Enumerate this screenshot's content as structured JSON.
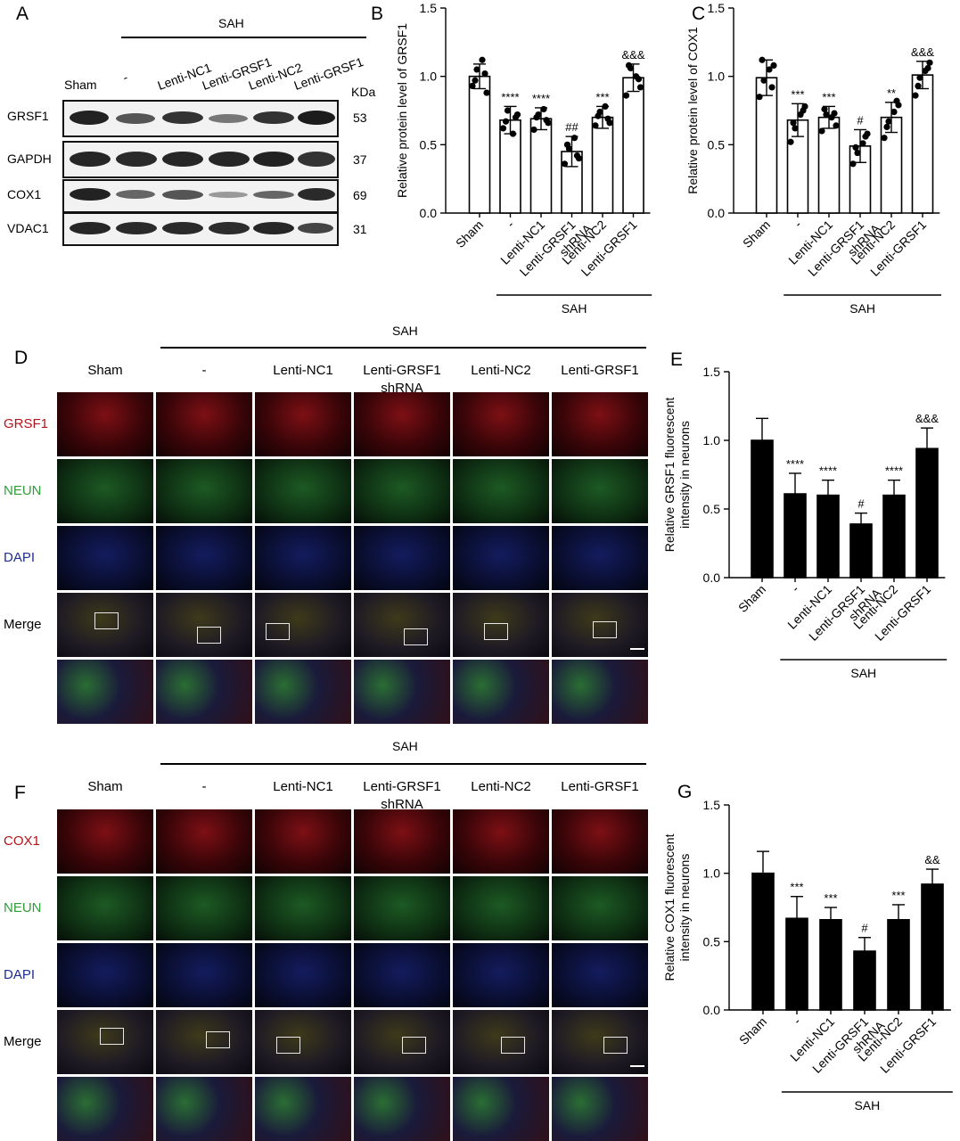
{
  "panels": [
    "A",
    "B",
    "C",
    "D",
    "E",
    "F",
    "G"
  ],
  "western": {
    "sah_label": "SAH",
    "lanes": [
      "Sham",
      "-",
      "Lenti-NC1",
      "Lenti-GRSF1",
      "Lenti-NC2",
      "Lenti-GRSF1"
    ],
    "kda_label": "KDa",
    "rows": [
      {
        "protein": "GRSF1",
        "kda": "53"
      },
      {
        "protein": "GAPDH",
        "kda": "37"
      },
      {
        "protein": "COX1",
        "kda": "69"
      },
      {
        "protein": "VDAC1",
        "kda": "31"
      }
    ]
  },
  "groups": [
    "Sham",
    "-",
    "Lenti-NC1",
    "Lenti-GRSF1\nshRNA",
    "Lenti-NC2",
    "Lenti-GRSF1"
  ],
  "sah_label": "SAH",
  "micrographs": {
    "d_headers": [
      "Sham",
      "-",
      "Lenti-NC1",
      "Lenti-GRSF1",
      "Lenti-NC2",
      "Lenti-GRSF1"
    ],
    "d_header_sub": "shRNA",
    "d_rows": [
      "GRSF1",
      "NEUN",
      "DAPI",
      "Merge"
    ],
    "f_rows": [
      "COX1",
      "NEUN",
      "DAPI",
      "Merge"
    ],
    "colors": {
      "red": "#b2141b",
      "green": "#2e9e3a",
      "blue": "#1f2d8f",
      "black": "#000000"
    }
  },
  "chart_data": [
    {
      "panel": "B",
      "type": "bar",
      "categories": [
        "Sham",
        "-",
        "Lenti-NC1",
        "Lenti-GRSF1 shRNA",
        "Lenti-NC2",
        "Lenti-GRSF1"
      ],
      "values": [
        1.0,
        0.68,
        0.69,
        0.45,
        0.7,
        0.99
      ],
      "errors": [
        0.09,
        0.1,
        0.08,
        0.11,
        0.08,
        0.1
      ],
      "points": [
        [
          0.93,
          1.05,
          1.12,
          0.88,
          0.97,
          1.02
        ],
        [
          0.62,
          0.75,
          0.58,
          0.72,
          0.67,
          0.7
        ],
        [
          0.61,
          0.72,
          0.76,
          0.66,
          0.7,
          0.68
        ],
        [
          0.36,
          0.47,
          0.55,
          0.4,
          0.5,
          0.42
        ],
        [
          0.64,
          0.74,
          0.78,
          0.66,
          0.71,
          0.69
        ],
        [
          0.86,
          1.06,
          1.0,
          0.92,
          1.08,
          0.98
        ]
      ],
      "annotations": [
        "",
        "****",
        "****",
        "##",
        "***",
        "&&&"
      ],
      "ylabel": "Relative protein level of GRSF1",
      "ylim": [
        0,
        1.5
      ],
      "yticks": [
        "0.0",
        "0.5",
        "1.0",
        "1.5"
      ],
      "style": "hollow"
    },
    {
      "panel": "C",
      "type": "bar",
      "categories": [
        "Sham",
        "-",
        "Lenti-NC1",
        "Lenti-GRSF1 shRNA",
        "Lenti-NC2",
        "Lenti-GRSF1"
      ],
      "values": [
        0.99,
        0.68,
        0.7,
        0.49,
        0.7,
        1.01
      ],
      "errors": [
        0.13,
        0.12,
        0.08,
        0.12,
        0.11,
        0.1
      ],
      "points": [
        [
          0.85,
          0.97,
          1.05,
          1.08,
          1.12,
          0.92
        ],
        [
          0.52,
          0.62,
          0.72,
          0.78,
          0.66,
          0.75
        ],
        [
          0.6,
          0.72,
          0.7,
          0.64,
          0.76,
          0.73
        ],
        [
          0.36,
          0.44,
          0.51,
          0.58,
          0.48,
          0.56
        ],
        [
          0.55,
          0.67,
          0.74,
          0.79,
          0.63,
          0.82
        ],
        [
          0.86,
          0.99,
          1.04,
          1.1,
          0.93,
          1.06
        ]
      ],
      "annotations": [
        "",
        "***",
        "***",
        "#",
        "**",
        "&&&"
      ],
      "ylabel": "Relative protein level of COX1",
      "ylim": [
        0,
        1.5
      ],
      "yticks": [
        "0.0",
        "0.5",
        "1.0",
        "1.5"
      ],
      "style": "hollow"
    },
    {
      "panel": "E",
      "type": "bar",
      "categories": [
        "Sham",
        "-",
        "Lenti-NC1",
        "Lenti-GRSF1 shRNA",
        "Lenti-NC2",
        "Lenti-GRSF1"
      ],
      "values": [
        1.0,
        0.61,
        0.6,
        0.39,
        0.6,
        0.94
      ],
      "errors": [
        0.16,
        0.15,
        0.11,
        0.08,
        0.11,
        0.15
      ],
      "annotations": [
        "",
        "****",
        "****",
        "#",
        "****",
        "&&&"
      ],
      "ylabel": "Relative GRSF1 fluorescent\nintensity in neurons",
      "ylim": [
        0,
        1.5
      ],
      "yticks": [
        "0.0",
        "0.5",
        "1.0",
        "1.5"
      ],
      "style": "filled"
    },
    {
      "panel": "G",
      "type": "bar",
      "categories": [
        "Sham",
        "-",
        "Lenti-NC1",
        "Lenti-GRSF1 shRNA",
        "Lenti-NC2",
        "Lenti-GRSF1"
      ],
      "values": [
        1.0,
        0.67,
        0.66,
        0.43,
        0.66,
        0.92
      ],
      "errors": [
        0.16,
        0.16,
        0.09,
        0.1,
        0.11,
        0.11
      ],
      "annotations": [
        "",
        "***",
        "***",
        "#",
        "***",
        "&&"
      ],
      "ylabel": "Relative COX1 fluorescent\nintensity in neurons",
      "ylim": [
        0,
        1.5
      ],
      "yticks": [
        "0.0",
        "0.5",
        "1.0",
        "1.5"
      ],
      "style": "filled"
    }
  ]
}
